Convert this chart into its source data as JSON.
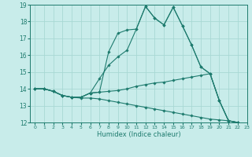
{
  "title": "",
  "xlabel": "Humidex (Indice chaleur)",
  "xlim": [
    -0.5,
    23
  ],
  "ylim": [
    12,
    19
  ],
  "xticks": [
    0,
    1,
    2,
    3,
    4,
    5,
    6,
    7,
    8,
    9,
    10,
    11,
    12,
    13,
    14,
    15,
    16,
    17,
    18,
    19,
    20,
    21,
    22,
    23
  ],
  "yticks": [
    12,
    13,
    14,
    15,
    16,
    17,
    18,
    19
  ],
  "background_color": "#c8ecea",
  "line_color": "#1e7b6e",
  "grid_color": "#a8d8d4",
  "lines": [
    {
      "x": [
        0,
        1,
        2,
        3,
        4,
        5,
        6,
        7,
        8,
        9,
        10,
        11,
        12,
        13,
        14,
        15,
        16,
        17,
        18,
        19,
        20,
        21,
        22,
        23
      ],
      "y": [
        14.0,
        14.0,
        13.85,
        13.6,
        13.5,
        13.5,
        13.75,
        13.8,
        16.2,
        17.3,
        17.5,
        17.55,
        18.9,
        18.2,
        17.8,
        18.85,
        17.75,
        16.6,
        15.3,
        14.9,
        13.3,
        12.1,
        12.0,
        11.75
      ]
    },
    {
      "x": [
        0,
        1,
        2,
        3,
        4,
        5,
        6,
        7,
        8,
        9,
        10,
        11,
        12,
        13,
        14,
        15,
        16,
        17,
        18,
        19,
        20,
        21,
        22,
        23
      ],
      "y": [
        14.0,
        14.0,
        13.85,
        13.6,
        13.5,
        13.5,
        13.75,
        14.6,
        15.4,
        15.9,
        16.3,
        17.55,
        18.9,
        18.2,
        17.8,
        18.85,
        17.75,
        16.6,
        15.3,
        14.9,
        13.3,
        12.1,
        12.0,
        11.75
      ]
    },
    {
      "x": [
        0,
        1,
        2,
        3,
        4,
        5,
        6,
        7,
        8,
        9,
        10,
        11,
        12,
        13,
        14,
        15,
        16,
        17,
        18,
        19,
        20,
        21,
        22,
        23
      ],
      "y": [
        14.0,
        14.0,
        13.85,
        13.6,
        13.5,
        13.5,
        13.75,
        13.8,
        13.85,
        13.9,
        14.0,
        14.15,
        14.25,
        14.35,
        14.4,
        14.5,
        14.6,
        14.7,
        14.8,
        14.9,
        13.3,
        12.1,
        12.0,
        11.75
      ]
    },
    {
      "x": [
        0,
        1,
        2,
        3,
        4,
        5,
        6,
        7,
        8,
        9,
        10,
        11,
        12,
        13,
        14,
        15,
        16,
        17,
        18,
        19,
        20,
        21,
        22,
        23
      ],
      "y": [
        14.0,
        14.0,
        13.85,
        13.6,
        13.5,
        13.45,
        13.45,
        13.4,
        13.3,
        13.2,
        13.1,
        13.0,
        12.9,
        12.8,
        12.7,
        12.6,
        12.5,
        12.4,
        12.3,
        12.2,
        12.15,
        12.1,
        12.0,
        11.75
      ]
    }
  ]
}
